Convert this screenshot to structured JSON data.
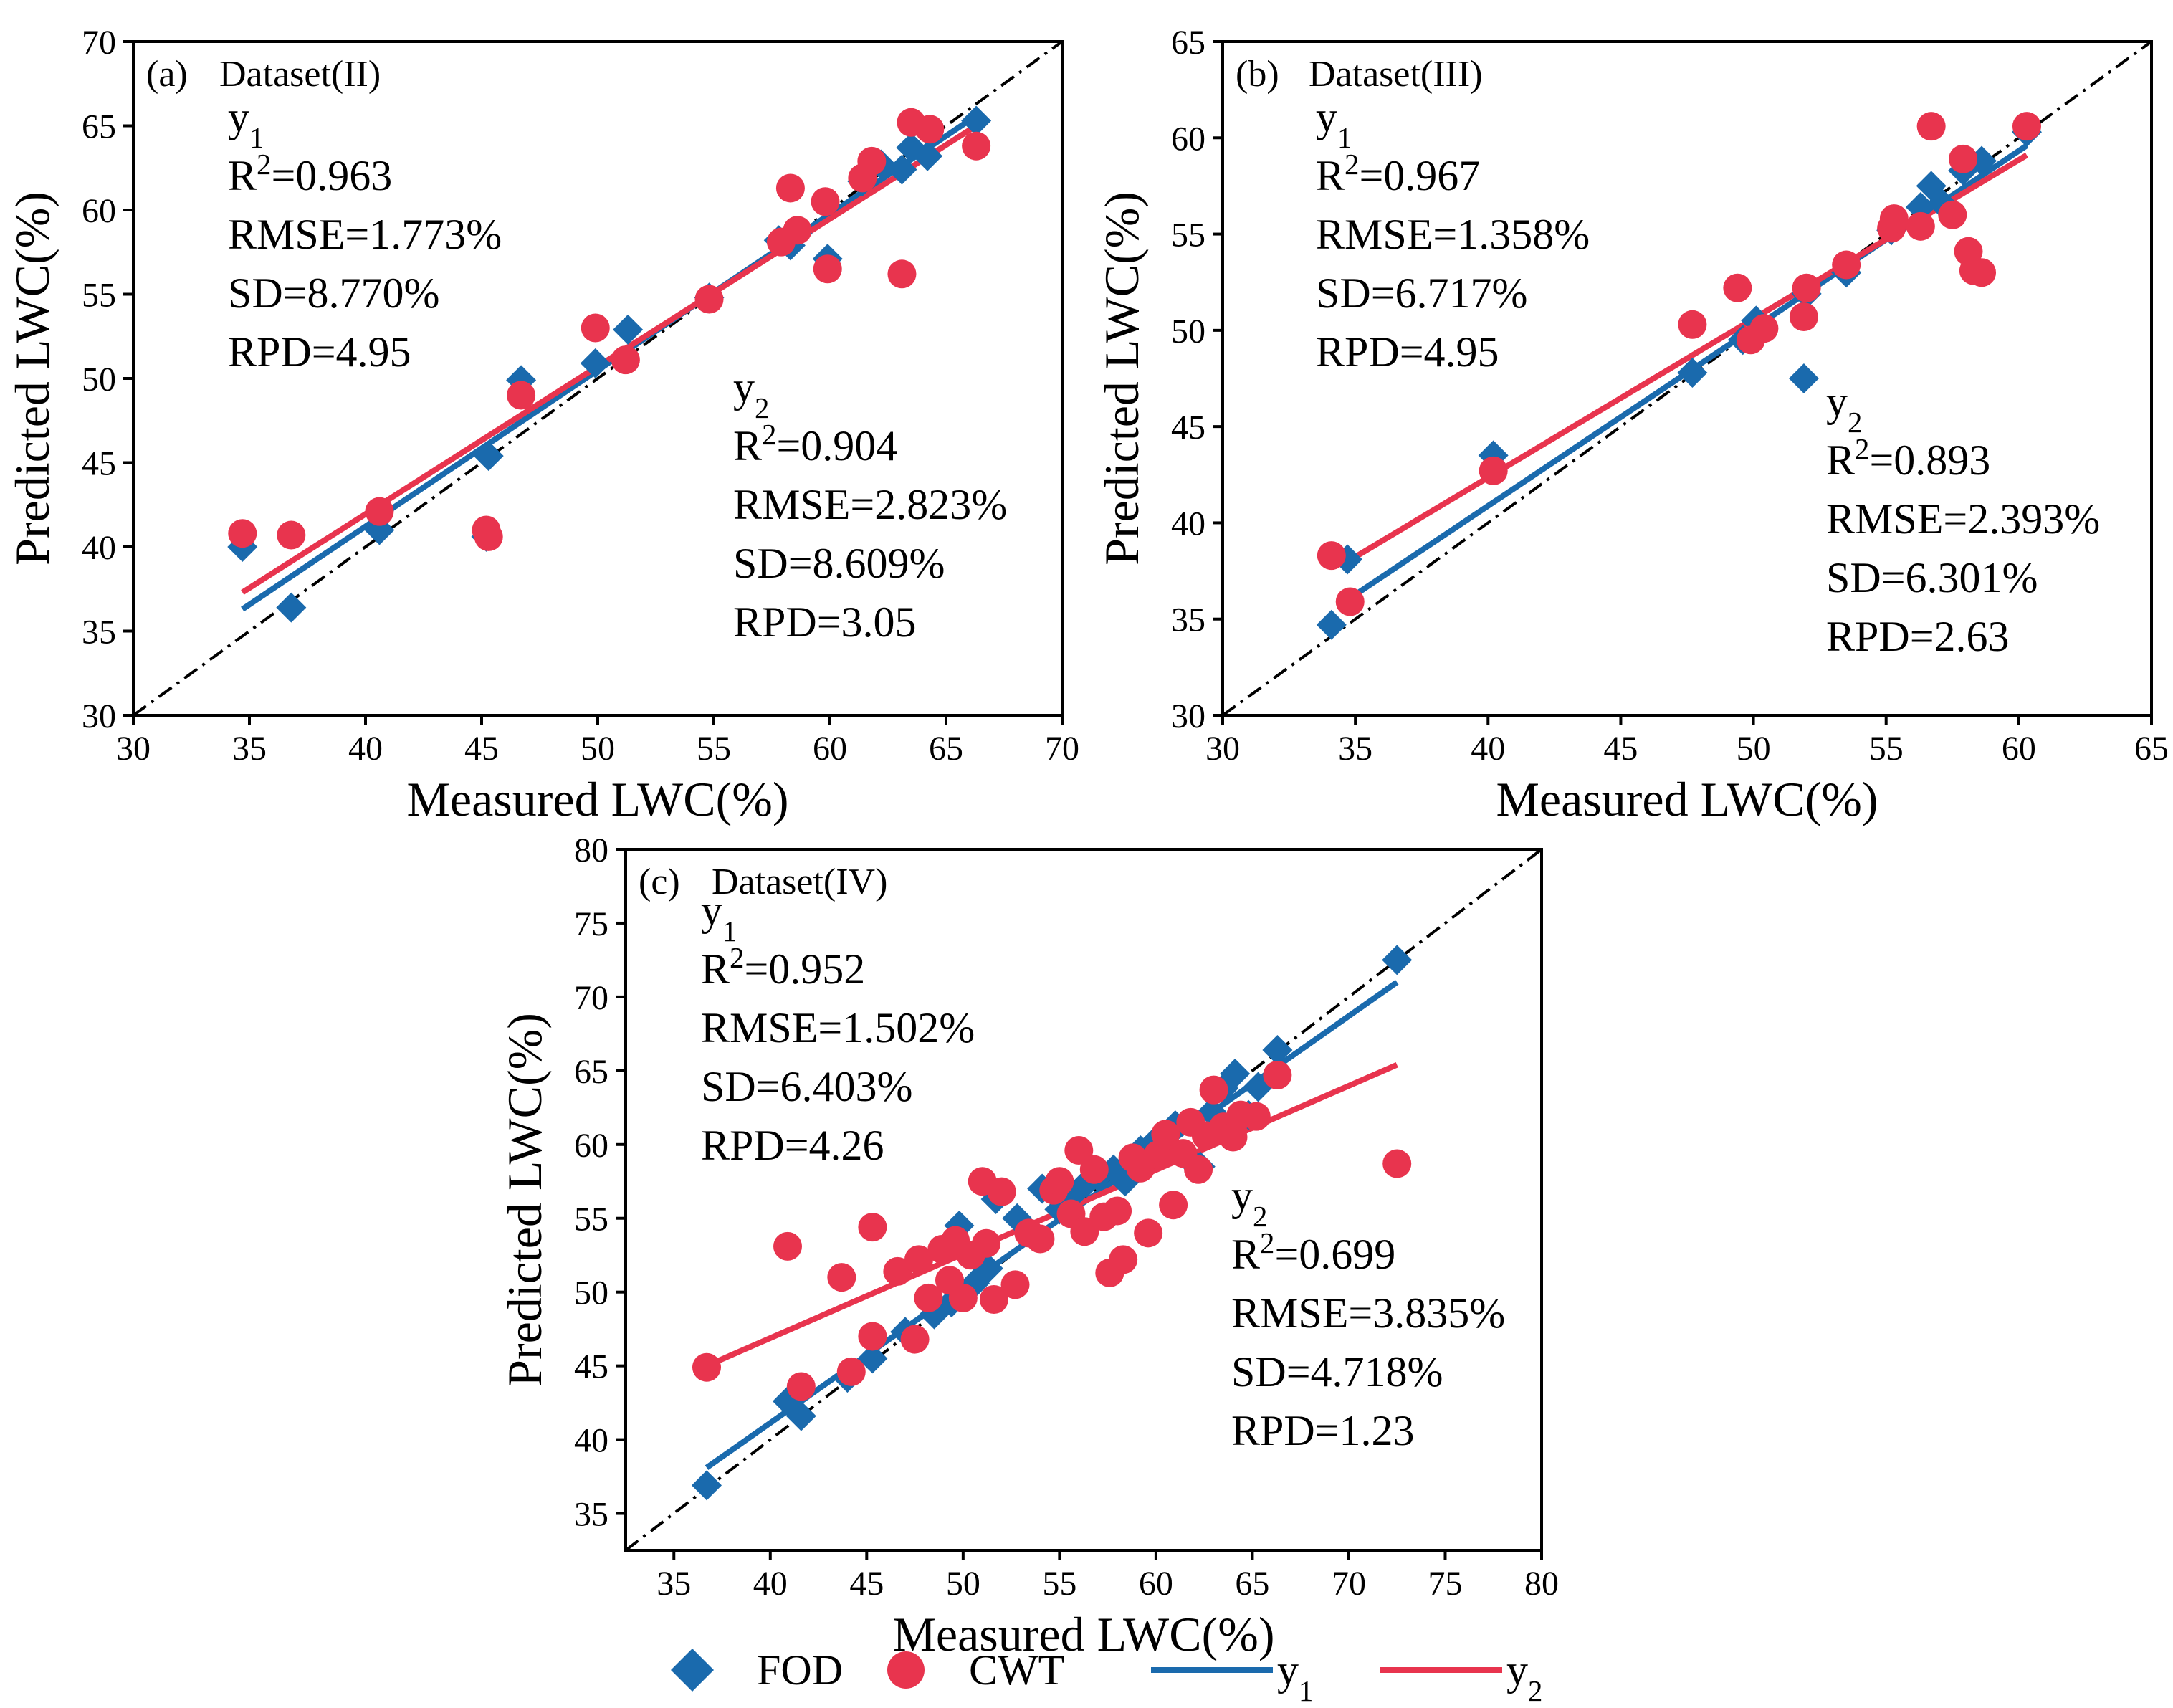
{
  "colors": {
    "fod": "#1a6aad",
    "cwt": "#e8344e",
    "y1_line": "#1a6aad",
    "y2_line": "#e8344e",
    "ref_line": "#000000"
  },
  "legend": {
    "fod": "FOD",
    "cwt": "CWT",
    "y1": {
      "base": "y",
      "sub": "1"
    },
    "y2": {
      "base": "y",
      "sub": "2"
    }
  },
  "chart_data": [
    {
      "type": "scatter",
      "panel": "(a)",
      "title": "Dataset(II)",
      "xlabel": "Measured LWC(%)",
      "ylabel": "Predicted LWC(%)",
      "xlim": [
        30,
        70
      ],
      "ylim": [
        30,
        70
      ],
      "xticks": [
        30,
        35,
        40,
        45,
        50,
        55,
        60,
        65,
        70
      ],
      "yticks": [
        30,
        35,
        40,
        45,
        50,
        55,
        60,
        65,
        70
      ],
      "series": [
        {
          "name": "FOD",
          "marker": "diamond",
          "x": [
            34.7,
            36.8,
            40.6,
            45.2,
            45.3,
            46.7,
            49.9,
            51.3,
            54.8,
            57.8,
            58.3,
            58.6,
            59.9,
            61.4,
            62.2,
            63.1,
            63.5,
            64.2,
            66.3
          ],
          "y": [
            40.0,
            36.4,
            41.0,
            40.6,
            45.4,
            49.9,
            50.9,
            52.9,
            54.8,
            58.2,
            57.9,
            58.6,
            57.1,
            61.7,
            62.7,
            62.4,
            63.7,
            63.2,
            65.3
          ]
        },
        {
          "name": "CWT",
          "marker": "circle",
          "x": [
            34.7,
            36.8,
            40.6,
            45.2,
            45.3,
            46.7,
            49.9,
            51.2,
            54.8,
            57.9,
            58.3,
            58.6,
            59.8,
            59.9,
            61.4,
            61.8,
            63.1,
            63.5,
            64.3,
            66.3
          ],
          "y": [
            40.8,
            40.7,
            42.1,
            41.0,
            40.6,
            49.0,
            53.0,
            51.1,
            54.7,
            58.1,
            61.3,
            58.8,
            60.5,
            56.5,
            61.9,
            62.9,
            56.2,
            65.2,
            64.8,
            63.8
          ]
        }
      ],
      "fits": [
        {
          "name": "y1",
          "x": [
            34.7,
            66.3
          ],
          "y": [
            36.3,
            65.6
          ]
        },
        {
          "name": "y2",
          "x": [
            34.7,
            66.3
          ],
          "y": [
            37.3,
            65.0
          ]
        }
      ],
      "stats": {
        "y1": {
          "label_base": "y",
          "label_sub": "1",
          "r2": "=0.963",
          "rmse": "RMSE=1.773%",
          "sd": "SD=8.770%",
          "rpd": "RPD=4.95"
        },
        "y2": {
          "label_base": "y",
          "label_sub": "2",
          "r2": "=0.904",
          "rmse": "RMSE=2.823%",
          "sd": "SD=8.609%",
          "rpd": "RPD=3.05"
        }
      },
      "stat_prefix": {
        "r": "R",
        "sup": "2"
      }
    },
    {
      "type": "scatter",
      "panel": "(b)",
      "title": "Dataset(III)",
      "xlabel": "Measured LWC(%)",
      "ylabel": "Predicted LWC(%)",
      "xlim": [
        30,
        65
      ],
      "ylim": [
        30,
        65
      ],
      "xticks": [
        30,
        35,
        40,
        45,
        50,
        55,
        60,
        65
      ],
      "yticks": [
        30,
        35,
        40,
        45,
        50,
        55,
        60,
        65
      ],
      "series": [
        {
          "name": "FOD",
          "marker": "diamond",
          "x": [
            34.1,
            34.7,
            40.2,
            47.7,
            49.6,
            50.1,
            51.9,
            52.0,
            53.5,
            55.2,
            56.3,
            56.7,
            57.1,
            57.9,
            58.6,
            60.3
          ],
          "y": [
            34.7,
            38.1,
            43.5,
            47.8,
            49.5,
            50.5,
            47.5,
            51.9,
            53.0,
            55.2,
            56.4,
            57.5,
            56.6,
            58.3,
            58.8,
            60.3
          ]
        },
        {
          "name": "CWT",
          "marker": "circle",
          "x": [
            34.1,
            34.8,
            40.2,
            47.7,
            49.4,
            49.9,
            50.4,
            51.9,
            52.0,
            53.5,
            55.2,
            55.3,
            56.3,
            56.7,
            57.5,
            57.9,
            58.1,
            58.3,
            58.6,
            60.3
          ],
          "y": [
            38.3,
            35.9,
            42.7,
            50.3,
            52.2,
            49.5,
            50.1,
            50.7,
            52.2,
            53.4,
            55.3,
            55.8,
            55.4,
            60.6,
            56.0,
            58.9,
            54.1,
            53.1,
            53.0,
            60.6
          ]
        }
      ],
      "fits": [
        {
          "name": "y1",
          "x": [
            34.6,
            60.3
          ],
          "y": [
            35.9,
            59.6
          ]
        },
        {
          "name": "y2",
          "x": [
            34.6,
            60.3
          ],
          "y": [
            37.9,
            59.1
          ]
        }
      ],
      "stats": {
        "y1": {
          "label_base": "y",
          "label_sub": "1",
          "r2": "=0.967",
          "rmse": "RMSE=1.358%",
          "sd": "SD=6.717%",
          "rpd": "RPD=4.95"
        },
        "y2": {
          "label_base": "y",
          "label_sub": "2",
          "r2": "=0.893",
          "rmse": "RMSE=2.393%",
          "sd": "SD=6.301%",
          "rpd": "RPD=2.63"
        }
      },
      "stat_prefix": {
        "r": "R",
        "sup": "2"
      }
    },
    {
      "type": "scatter",
      "panel": "(c)",
      "title": "Dataset(IV)",
      "xlabel": "Measured LWC(%)",
      "ylabel": "Predicted LWC(%)",
      "xlim": [
        32.5,
        80
      ],
      "ylim": [
        32.5,
        80
      ],
      "xticks": [
        35,
        40,
        45,
        50,
        55,
        60,
        65,
        70,
        75,
        80
      ],
      "yticks": [
        35,
        40,
        45,
        50,
        55,
        60,
        65,
        70,
        75,
        80
      ],
      "series": [
        {
          "name": "FOD",
          "marker": "diamond",
          "x": [
            36.7,
            40.9,
            41.6,
            44.0,
            45.3,
            47.0,
            48.5,
            49.4,
            49.8,
            50.6,
            51.3,
            51.7,
            52.8,
            53.6,
            54.1,
            55.0,
            55.7,
            56.4,
            57.0,
            57.8,
            58.4,
            59.2,
            59.8,
            60.4,
            61.0,
            61.5,
            62.3,
            62.9,
            63.5,
            64.1,
            64.8,
            65.3,
            66.3,
            72.5
          ],
          "y": [
            36.9,
            42.6,
            41.6,
            44.2,
            45.5,
            47.3,
            48.5,
            49.3,
            54.5,
            50.6,
            51.6,
            56.3,
            55.0,
            53.8,
            57.0,
            55.6,
            56.6,
            57.4,
            57.8,
            58.3,
            57.5,
            59.6,
            60.0,
            59.7,
            61.3,
            59.3,
            58.5,
            62.2,
            63.8,
            64.8,
            62.0,
            63.9,
            66.4,
            72.5
          ]
        },
        {
          "name": "CWT",
          "marker": "circle",
          "x": [
            36.7,
            40.9,
            41.6,
            43.7,
            44.2,
            45.3,
            45.3,
            46.6,
            47.5,
            47.7,
            48.2,
            48.9,
            49.3,
            49.6,
            50.0,
            50.4,
            51.0,
            51.2,
            51.6,
            52.0,
            52.7,
            53.4,
            54.0,
            54.7,
            55.0,
            55.6,
            56.0,
            56.3,
            56.8,
            57.3,
            57.6,
            58.0,
            58.3,
            58.8,
            59.2,
            59.6,
            60.1,
            60.5,
            60.9,
            61.4,
            61.8,
            62.2,
            62.6,
            63.0,
            63.5,
            64.0,
            64.4,
            65.2,
            66.3,
            72.5
          ],
          "y": [
            44.9,
            53.1,
            43.6,
            51.0,
            44.6,
            54.4,
            47.0,
            51.4,
            46.8,
            52.2,
            49.6,
            52.9,
            50.8,
            53.5,
            49.6,
            52.5,
            57.5,
            53.3,
            49.5,
            56.8,
            50.5,
            54.0,
            53.6,
            56.9,
            57.5,
            55.3,
            59.6,
            54.1,
            58.3,
            55.1,
            51.3,
            55.5,
            52.2,
            59.1,
            58.4,
            54.0,
            59.3,
            60.7,
            55.9,
            59.4,
            61.5,
            58.3,
            60.6,
            63.7,
            61.2,
            60.5,
            62.0,
            61.9,
            64.7,
            58.7
          ]
        }
      ],
      "fits": [
        {
          "name": "y1",
          "x": [
            36.7,
            72.5
          ],
          "y": [
            38.1,
            71.0
          ]
        },
        {
          "name": "y2",
          "x": [
            36.7,
            72.5
          ],
          "y": [
            45.0,
            65.4
          ]
        }
      ],
      "stats": {
        "y1": {
          "label_base": "y",
          "label_sub": "1",
          "r2": "=0.952",
          "rmse": "RMSE=1.502%",
          "sd": "SD=6.403%",
          "rpd": "RPD=4.26"
        },
        "y2": {
          "label_base": "y",
          "label_sub": "2",
          "r2": "=0.699",
          "rmse": "RMSE=3.835%",
          "sd": "SD=4.718%",
          "rpd": "RPD=1.23"
        }
      },
      "stat_prefix": {
        "r": "R",
        "sup": "2"
      }
    }
  ]
}
